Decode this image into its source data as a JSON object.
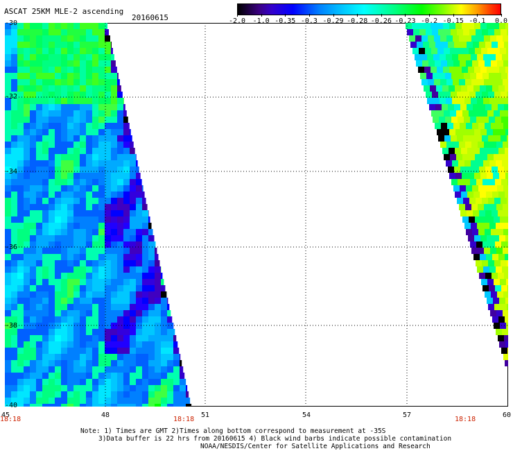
{
  "header": {
    "title": "ASCAT 25KM MLE-2 ascending",
    "date": "20160615"
  },
  "colorbar": {
    "ticks": [
      "-2.0",
      "-1.0",
      "-0.35",
      "-0.3",
      "-0.29",
      "-0.28",
      "-0.26",
      "-0.23",
      "-0.2",
      "-0.15",
      "-0.1",
      "0.0"
    ]
  },
  "axes": {
    "lat_labels": [
      "-30",
      "-32",
      "-34",
      "-36",
      "-38",
      "-40"
    ],
    "lon_labels": [
      "45",
      "48",
      "51",
      "54",
      "57",
      "60"
    ],
    "times": [
      "18:18",
      "18:18",
      "18:18"
    ]
  },
  "notes": {
    "line1": "Note: 1) Times are GMT 2)Times along bottom correspond to measurement at -35S",
    "line2": "3)Data buffer is 22 hrs from 20160615 4) Black wind barbs indicate possible contamination",
    "line3": "NOAA/NESDIS/Center for Satellite Applications and Research"
  },
  "colors": {
    "time_label": "#cc2200",
    "grid": "#000000"
  }
}
